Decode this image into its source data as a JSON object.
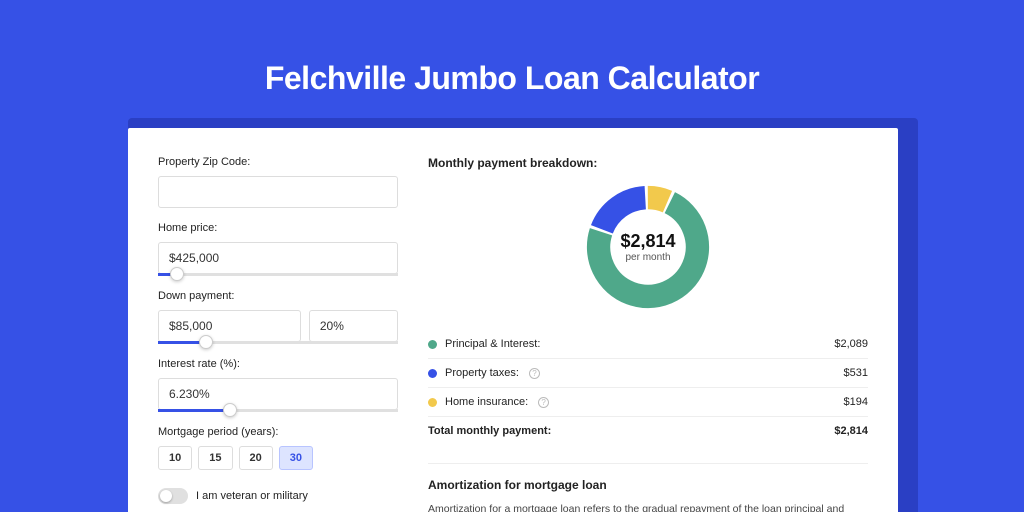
{
  "page": {
    "bg_color": "#3651e6",
    "title": "Felchville Jumbo Loan Calculator",
    "title_color": "#ffffff"
  },
  "form": {
    "zip": {
      "label": "Property Zip Code:",
      "value": ""
    },
    "home_price": {
      "label": "Home price:",
      "value": "$425,000",
      "slider_pct": 8
    },
    "down_payment": {
      "label": "Down payment:",
      "amount": "$85,000",
      "pct": "20%",
      "slider_pct": 20
    },
    "interest_rate": {
      "label": "Interest rate (%):",
      "value": "6.230%",
      "slider_pct": 30
    },
    "mortgage_period": {
      "label": "Mortgage period (years):",
      "options": [
        "10",
        "15",
        "20",
        "30"
      ],
      "selected_index": 3
    },
    "veteran": {
      "label": "I am veteran or military",
      "on": false
    }
  },
  "breakdown": {
    "title": "Monthly payment breakdown:",
    "center_amount": "$2,814",
    "center_sub": "per month",
    "donut": {
      "segments": [
        {
          "label": "Principal & Interest:",
          "value": "$2,089",
          "numeric": 2089,
          "color": "#4fa88a"
        },
        {
          "label": "Property taxes:",
          "value": "$531",
          "numeric": 531,
          "color": "#3651e6",
          "info": true
        },
        {
          "label": "Home insurance:",
          "value": "$194",
          "numeric": 194,
          "color": "#f2c94c",
          "info": true
        }
      ],
      "stroke_width": 18,
      "gap_deg": 2,
      "start_angle_deg": -45
    },
    "total": {
      "label": "Total monthly payment:",
      "value": "$2,814"
    }
  },
  "amortization": {
    "title": "Amortization for mortgage loan",
    "text": "Amortization for a mortgage loan refers to the gradual repayment of the loan principal and interest over a specified"
  }
}
